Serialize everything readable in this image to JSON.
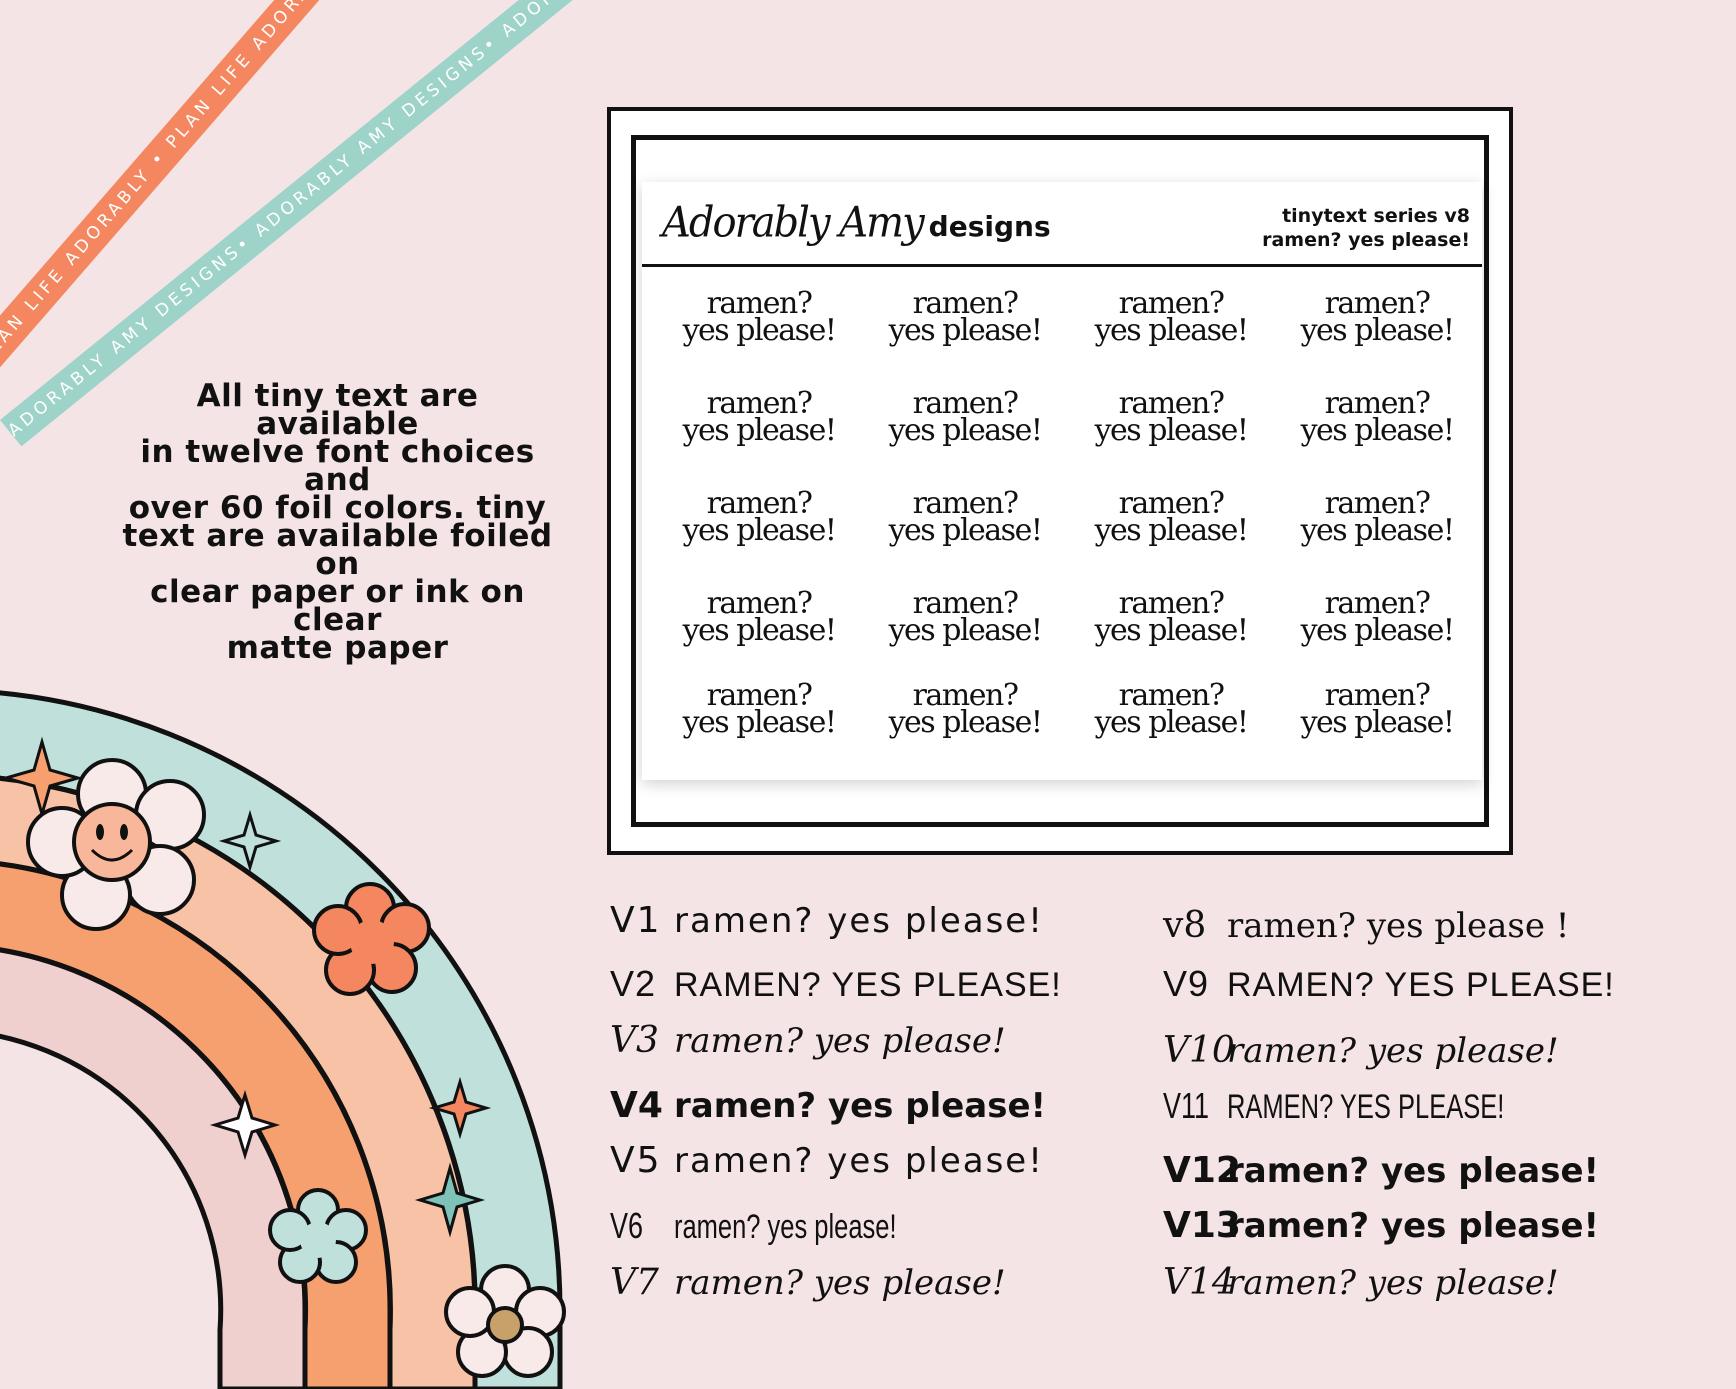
{
  "ribbons": {
    "orange_text": "PLAN LIFE ADORABLY • PLAN LIFE ADORABLY • PLAN LIFE AD",
    "teal_text": "ADORABLY AMY DESIGNS• ADORABLY AMY DESIGNS• ADORABLY AMY DESIGNS•"
  },
  "description": {
    "lines": [
      "All tiny text are available",
      "in twelve font choices and",
      "over 60 foil colors.  tiny",
      "text are available foiled on",
      "clear paper or ink on clear",
      "matte paper"
    ]
  },
  "sheet": {
    "brand_script": "Adorably Amy",
    "brand_word": "designs",
    "series_line1": "tinytext series v8",
    "series_line2": "ramen? yes please!",
    "sticker_line1": "ramen?",
    "sticker_line2": "yes please!",
    "rows": 5,
    "cols": 4
  },
  "versions_left": [
    {
      "code": "V1",
      "text": "ramen? yes please!"
    },
    {
      "code": "V2",
      "text": "RAMEN? YES PLEASE!"
    },
    {
      "code": "V3",
      "text": "ramen? yes please!"
    },
    {
      "code": "V4",
      "text": "ramen? yes please!"
    },
    {
      "code": "V5",
      "text": "ramen? yes please!"
    },
    {
      "code": "V6",
      "text": "ramen? yes please!"
    },
    {
      "code": "V7",
      "text": "ramen? yes please!"
    }
  ],
  "versions_right": [
    {
      "code": "v8",
      "text": "ramen? yes please !"
    },
    {
      "code": "V9",
      "text": "RAMEN? YES PLEASE!"
    },
    {
      "code": "V10",
      "text": "ramen? yes please!"
    },
    {
      "code": "V11",
      "text": "RAMEN? YES PLEASE!"
    },
    {
      "code": "V12",
      "text": "ramen? yes please!"
    },
    {
      "code": "V13",
      "text": "ramen? yes please!"
    },
    {
      "code": "V14",
      "text": "ramen? yes please!"
    }
  ],
  "colors": {
    "background": "#f5e4e5",
    "ribbon_orange": "#f4875f",
    "ribbon_teal": "#9ed3c9",
    "rainbow_teal": "#bfe0db",
    "rainbow_peach": "#f8c2a6",
    "rainbow_orange": "#f6a070",
    "rainbow_pink": "#f0cfcf"
  }
}
